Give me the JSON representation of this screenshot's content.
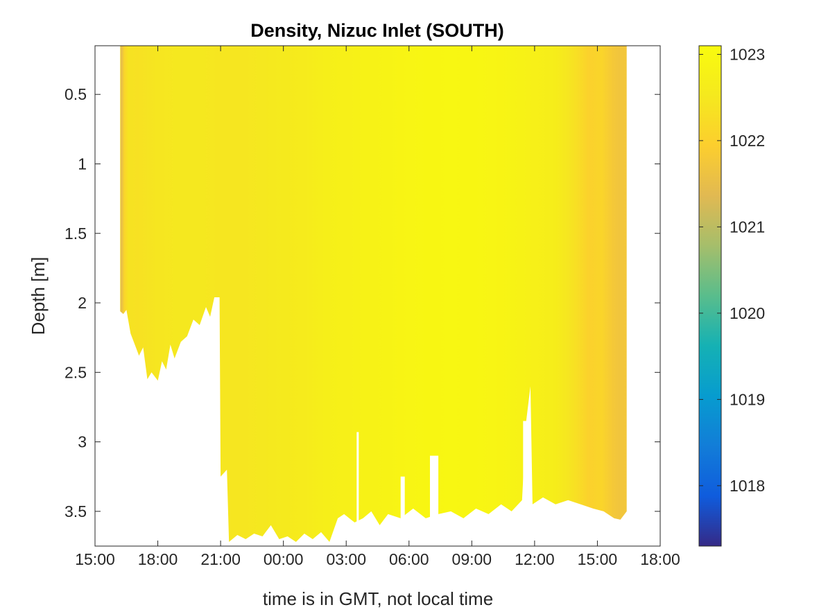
{
  "chart_data": {
    "type": "heatmap",
    "title": "Density, Nizuc  Inlet (SOUTH)",
    "xlabel": "time is in GMT, not local time",
    "ylabel": "Depth [m]",
    "x_ticks": [
      "15:00",
      "18:00",
      "21:00",
      "00:00",
      "03:00",
      "06:00",
      "09:00",
      "12:00",
      "15:00",
      "18:00"
    ],
    "x_range_hours": [
      0,
      27
    ],
    "y_ticks": [
      0.5,
      1,
      1.5,
      2,
      2.5,
      3,
      3.5
    ],
    "y_tick_labels": [
      "0.5",
      "1",
      "1.5",
      "2",
      "2.5",
      "3",
      "3.5"
    ],
    "ylim": [
      0.15,
      3.75
    ],
    "y_reversed": true,
    "colorbar": {
      "ticks": [
        1018,
        1019,
        1020,
        1021,
        1022,
        1023
      ],
      "tick_labels": [
        "1018",
        "1019",
        "1020",
        "1021",
        "1022",
        "1023"
      ],
      "limits": [
        1017.3,
        1023.1
      ],
      "colormap": "parula"
    },
    "data_start_hours": 1.2,
    "data_end_hours": 25.4,
    "bottom_profile": [
      [
        1.2,
        2.06
      ],
      [
        1.35,
        2.08
      ],
      [
        1.5,
        2.05
      ],
      [
        1.7,
        2.22
      ],
      [
        1.9,
        2.3
      ],
      [
        2.1,
        2.38
      ],
      [
        2.3,
        2.32
      ],
      [
        2.5,
        2.55
      ],
      [
        2.7,
        2.5
      ],
      [
        3.0,
        2.56
      ],
      [
        3.2,
        2.42
      ],
      [
        3.4,
        2.48
      ],
      [
        3.6,
        2.3
      ],
      [
        3.8,
        2.4
      ],
      [
        4.1,
        2.28
      ],
      [
        4.4,
        2.24
      ],
      [
        4.7,
        2.12
      ],
      [
        5.0,
        2.16
      ],
      [
        5.3,
        2.03
      ],
      [
        5.5,
        2.1
      ],
      [
        5.7,
        1.96
      ],
      [
        5.95,
        1.96
      ],
      [
        6.0,
        3.25
      ],
      [
        6.3,
        3.2
      ],
      [
        6.4,
        3.72
      ],
      [
        6.8,
        3.67
      ],
      [
        7.2,
        3.7
      ],
      [
        7.6,
        3.66
      ],
      [
        8.0,
        3.68
      ],
      [
        8.4,
        3.6
      ],
      [
        8.8,
        3.7
      ],
      [
        9.2,
        3.68
      ],
      [
        9.6,
        3.72
      ],
      [
        10.0,
        3.66
      ],
      [
        10.4,
        3.7
      ],
      [
        10.8,
        3.65
      ],
      [
        11.2,
        3.72
      ],
      [
        11.6,
        3.55
      ],
      [
        11.9,
        3.52
      ],
      [
        12.4,
        3.58
      ],
      [
        12.8,
        3.55
      ],
      [
        13.2,
        3.5
      ],
      [
        13.6,
        3.6
      ],
      [
        14.0,
        3.52
      ],
      [
        14.6,
        3.55
      ],
      [
        15.2,
        3.48
      ],
      [
        15.8,
        3.55
      ],
      [
        16.4,
        3.52
      ],
      [
        17.0,
        3.5
      ],
      [
        17.6,
        3.55
      ],
      [
        18.2,
        3.48
      ],
      [
        18.8,
        3.52
      ],
      [
        19.4,
        3.45
      ],
      [
        19.9,
        3.5
      ],
      [
        20.4,
        3.42
      ],
      [
        20.6,
        2.85
      ],
      [
        20.8,
        2.6
      ],
      [
        20.9,
        3.45
      ],
      [
        21.4,
        3.4
      ],
      [
        22.0,
        3.45
      ],
      [
        22.6,
        3.42
      ],
      [
        23.2,
        3.45
      ],
      [
        23.8,
        3.48
      ],
      [
        24.3,
        3.5
      ],
      [
        24.8,
        3.55
      ],
      [
        25.1,
        3.56
      ],
      [
        25.4,
        3.5
      ]
    ],
    "gaps": [
      {
        "x": [
          12.5,
          12.6
        ],
        "top": 2.93
      },
      {
        "x": [
          14.6,
          14.8
        ],
        "top": 3.25
      },
      {
        "x": [
          16.0,
          16.4
        ],
        "top": 3.1
      },
      {
        "x": [
          20.45,
          20.75
        ],
        "top": 2.85
      }
    ],
    "density_along_time": [
      [
        1.2,
        1022.3
      ],
      [
        1.25,
        1021.4
      ],
      [
        1.4,
        1022.1
      ],
      [
        1.6,
        1022.4
      ],
      [
        2.0,
        1022.35
      ],
      [
        3.0,
        1022.45
      ],
      [
        4.0,
        1022.5
      ],
      [
        5.0,
        1022.5
      ],
      [
        6.0,
        1022.45
      ],
      [
        7.0,
        1022.45
      ],
      [
        8.0,
        1022.5
      ],
      [
        9.0,
        1022.55
      ],
      [
        10.0,
        1022.6
      ],
      [
        11.0,
        1022.7
      ],
      [
        12.0,
        1022.75
      ],
      [
        13.0,
        1022.8
      ],
      [
        14.0,
        1022.85
      ],
      [
        15.0,
        1022.9
      ],
      [
        16.0,
        1022.95
      ],
      [
        17.0,
        1022.97
      ],
      [
        18.0,
        1022.95
      ],
      [
        19.0,
        1022.9
      ],
      [
        20.0,
        1022.85
      ],
      [
        21.0,
        1022.75
      ],
      [
        22.0,
        1022.65
      ],
      [
        22.6,
        1022.45
      ],
      [
        23.0,
        1022.3
      ],
      [
        23.6,
        1022.0
      ],
      [
        24.2,
        1022.1
      ],
      [
        24.7,
        1021.8
      ],
      [
        25.0,
        1021.7
      ],
      [
        25.4,
        1021.75
      ]
    ]
  }
}
